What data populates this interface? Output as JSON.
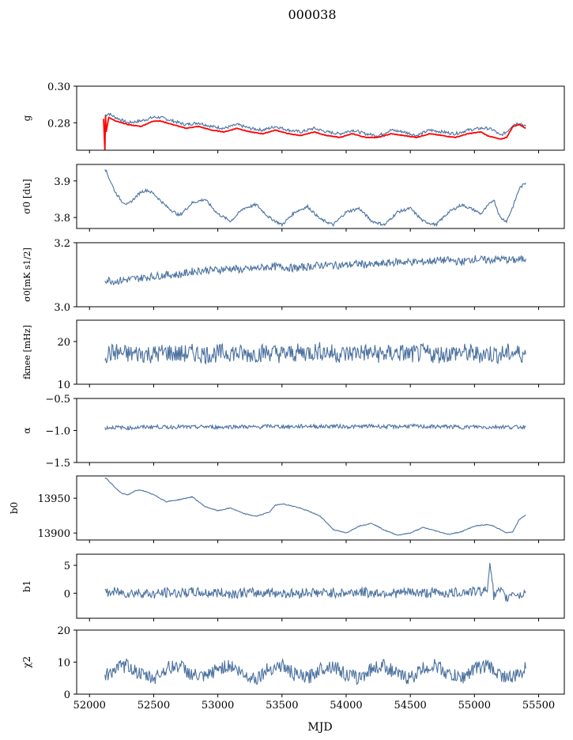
{
  "figure_title": "000038",
  "xaxis": {
    "label": "MJD",
    "range": [
      51900,
      55700
    ],
    "ticks": [
      52000,
      52500,
      53000,
      53500,
      54000,
      54500,
      55000,
      55500
    ]
  },
  "chart_data": [
    {
      "type": "line",
      "ylabel": "g",
      "ylim": [
        0.265,
        0.3
      ],
      "yticks": [
        0.28,
        0.3
      ],
      "ytick_labels": [
        "0.28",
        "0.30"
      ],
      "series": [
        {
          "color": "#4c72a0",
          "x": [
            52120,
            52150,
            52200,
            52300,
            52400,
            52500,
            52550,
            52650,
            52750,
            52850,
            52950,
            53050,
            53150,
            53250,
            53350,
            53450,
            53550,
            53650,
            53750,
            53850,
            53950,
            54050,
            54150,
            54250,
            54350,
            54450,
            54550,
            54650,
            54750,
            54850,
            54950,
            55050,
            55100,
            55150,
            55200,
            55250,
            55300,
            55350,
            55400
          ],
          "y": [
            0.284,
            0.285,
            0.283,
            0.28,
            0.281,
            0.283,
            0.283,
            0.281,
            0.279,
            0.28,
            0.278,
            0.277,
            0.279,
            0.277,
            0.276,
            0.278,
            0.276,
            0.275,
            0.277,
            0.275,
            0.274,
            0.276,
            0.274,
            0.273,
            0.276,
            0.275,
            0.273,
            0.276,
            0.275,
            0.274,
            0.276,
            0.277,
            0.277,
            0.276,
            0.273,
            0.275,
            0.279,
            0.28,
            0.278
          ]
        },
        {
          "color": "#ff0000",
          "x": [
            52110,
            52120,
            52125,
            52130,
            52150,
            52200,
            52300,
            52400,
            52500,
            52550,
            52650,
            52750,
            52850,
            52950,
            53050,
            53150,
            53250,
            53350,
            53450,
            53550,
            53650,
            53750,
            53850,
            53950,
            54050,
            54150,
            54250,
            54350,
            54450,
            54550,
            54650,
            54750,
            54850,
            54950,
            55050,
            55100,
            55150,
            55200,
            55250,
            55300,
            55350,
            55400
          ],
          "y": [
            0.282,
            0.265,
            0.284,
            0.275,
            0.283,
            0.281,
            0.279,
            0.278,
            0.281,
            0.281,
            0.279,
            0.277,
            0.278,
            0.276,
            0.275,
            0.277,
            0.275,
            0.274,
            0.276,
            0.274,
            0.273,
            0.275,
            0.273,
            0.272,
            0.274,
            0.272,
            0.272,
            0.274,
            0.273,
            0.272,
            0.274,
            0.273,
            0.272,
            0.274,
            0.275,
            0.273,
            0.272,
            0.271,
            0.272,
            0.278,
            0.279,
            0.277
          ]
        }
      ]
    },
    {
      "type": "line",
      "ylabel": "σ0 [du]",
      "ylim": [
        3.77,
        3.945
      ],
      "yticks": [
        3.8,
        3.9
      ],
      "ytick_labels": [
        "3.8",
        "3.9"
      ],
      "series": [
        {
          "color": "#4c72a0",
          "x": [
            52120,
            52150,
            52200,
            52250,
            52300,
            52400,
            52450,
            52500,
            52600,
            52700,
            52800,
            52900,
            53000,
            53100,
            53200,
            53300,
            53400,
            53500,
            53600,
            53700,
            53800,
            53900,
            54000,
            54100,
            54200,
            54300,
            54400,
            54500,
            54600,
            54700,
            54800,
            54900,
            55000,
            55050,
            55100,
            55150,
            55200,
            55250,
            55300,
            55350,
            55400
          ],
          "y": [
            3.935,
            3.91,
            3.87,
            3.845,
            3.835,
            3.87,
            3.875,
            3.865,
            3.83,
            3.805,
            3.84,
            3.85,
            3.81,
            3.79,
            3.825,
            3.835,
            3.8,
            3.78,
            3.815,
            3.83,
            3.795,
            3.78,
            3.815,
            3.825,
            3.79,
            3.78,
            3.815,
            3.825,
            3.79,
            3.78,
            3.815,
            3.835,
            3.82,
            3.81,
            3.83,
            3.85,
            3.8,
            3.79,
            3.83,
            3.88,
            3.895
          ]
        }
      ]
    },
    {
      "type": "line",
      "ylabel": "σ0[mK s1/2]",
      "ylim": [
        3.0,
        3.2
      ],
      "yticks": [
        3.0,
        3.2
      ],
      "ytick_labels": [
        "3.0",
        "3.2"
      ],
      "series": [
        {
          "color": "#4c72a0",
          "x": [
            52120,
            52200,
            52300,
            52400,
            52500,
            52600,
            52700,
            52800,
            52900,
            53000,
            53100,
            53200,
            53300,
            53400,
            53500,
            53600,
            53700,
            53800,
            53900,
            54000,
            54100,
            54200,
            54300,
            54400,
            54500,
            54600,
            54700,
            54800,
            54900,
            55000,
            55100,
            55200,
            55300,
            55400
          ],
          "y": [
            3.085,
            3.08,
            3.085,
            3.09,
            3.095,
            3.1,
            3.1,
            3.11,
            3.115,
            3.115,
            3.12,
            3.115,
            3.12,
            3.125,
            3.125,
            3.12,
            3.125,
            3.13,
            3.13,
            3.13,
            3.135,
            3.13,
            3.135,
            3.14,
            3.14,
            3.14,
            3.145,
            3.145,
            3.14,
            3.15,
            3.145,
            3.15,
            3.145,
            3.15
          ]
        }
      ]
    },
    {
      "type": "line",
      "ylabel": "fknee [mHz]",
      "ylim": [
        10,
        25
      ],
      "yticks": [
        10,
        20
      ],
      "ytick_labels": [
        "10",
        "20"
      ],
      "series": [
        {
          "color": "#4c72a0",
          "x": [
            52120,
            52200,
            52300,
            52400,
            52500,
            52600,
            52700,
            52800,
            52900,
            53000,
            53100,
            53200,
            53300,
            53400,
            53500,
            53600,
            53700,
            53800,
            53900,
            54000,
            54100,
            54200,
            54300,
            54400,
            54500,
            54600,
            54700,
            54800,
            54900,
            55000,
            55100,
            55200,
            55300,
            55400
          ],
          "y": [
            17,
            17.5,
            17,
            17.2,
            17,
            17.5,
            17,
            17.3,
            17,
            17.2,
            17.5,
            17,
            17.2,
            17.5,
            17,
            17.3,
            17.5,
            17.8,
            17.2,
            17,
            17.6,
            17.2,
            17,
            17.4,
            17,
            17.3,
            17,
            17.2,
            17.5,
            17,
            17.2,
            17,
            17.4,
            17
          ]
        }
      ]
    },
    {
      "type": "line",
      "ylabel": "α",
      "ylim": [
        -1.5,
        -0.5
      ],
      "yticks": [
        -1.5,
        -1.0,
        -0.5
      ],
      "ytick_labels": [
        "−1.5",
        "−1.0",
        "−0.5"
      ],
      "series": [
        {
          "color": "#4c72a0",
          "x": [
            52120,
            52200,
            52300,
            52400,
            52500,
            52600,
            52700,
            52800,
            52900,
            53000,
            53100,
            53200,
            53300,
            53400,
            53500,
            53600,
            53700,
            53800,
            53900,
            54000,
            54100,
            54200,
            54300,
            54400,
            54500,
            54600,
            54700,
            54800,
            54900,
            55000,
            55100,
            55200,
            55300,
            55400
          ],
          "y": [
            -0.96,
            -0.95,
            -0.96,
            -0.95,
            -0.94,
            -0.95,
            -0.94,
            -0.95,
            -0.94,
            -0.95,
            -0.94,
            -0.94,
            -0.95,
            -0.93,
            -0.94,
            -0.94,
            -0.93,
            -0.94,
            -0.93,
            -0.94,
            -0.94,
            -0.93,
            -0.94,
            -0.94,
            -0.93,
            -0.94,
            -0.94,
            -0.94,
            -0.95,
            -0.94,
            -0.95,
            -0.94,
            -0.95,
            -0.94
          ]
        }
      ]
    },
    {
      "type": "line",
      "ylabel": "b0",
      "ylim": [
        13890,
        13982
      ],
      "yticks": [
        13900,
        13950
      ],
      "ytick_labels": [
        "13900",
        "13950"
      ],
      "series": [
        {
          "color": "#4c72a0",
          "x": [
            52120,
            52150,
            52200,
            52250,
            52300,
            52350,
            52400,
            52500,
            52600,
            52700,
            52800,
            52900,
            53000,
            53100,
            53200,
            53300,
            53400,
            53450,
            53500,
            53600,
            53700,
            53800,
            53900,
            54000,
            54100,
            54200,
            54300,
            54400,
            54500,
            54600,
            54700,
            54800,
            54900,
            55000,
            55100,
            55150,
            55200,
            55250,
            55300,
            55350,
            55400
          ],
          "y": [
            13980,
            13975,
            13965,
            13957,
            13955,
            13960,
            13962,
            13955,
            13945,
            13948,
            13952,
            13938,
            13932,
            13936,
            13928,
            13924,
            13930,
            13940,
            13942,
            13938,
            13932,
            13924,
            13905,
            13900,
            13910,
            13914,
            13904,
            13897,
            13900,
            13908,
            13903,
            13898,
            13902,
            13910,
            13912,
            13910,
            13905,
            13900,
            13902,
            13920,
            13926
          ]
        }
      ]
    },
    {
      "type": "line",
      "ylabel": "b1",
      "ylim": [
        -4.5,
        7
      ],
      "yticks": [
        0,
        5
      ],
      "ytick_labels": [
        "0",
        "5"
      ],
      "series": [
        {
          "color": "#4c72a0",
          "x": [
            52120,
            52200,
            52300,
            52400,
            52500,
            52600,
            52700,
            52800,
            52900,
            53000,
            53100,
            53200,
            53300,
            53400,
            53500,
            53600,
            53700,
            53800,
            53900,
            54000,
            54100,
            54200,
            54300,
            54400,
            54500,
            54600,
            54700,
            54800,
            54900,
            55000,
            55100,
            55120,
            55150,
            55200,
            55250,
            55300,
            55350,
            55400
          ],
          "y": [
            0,
            0.2,
            0,
            0.1,
            -0.2,
            0.1,
            0,
            0.2,
            0,
            0.1,
            -0.1,
            0.1,
            0,
            0.2,
            0,
            -0.1,
            0.2,
            0,
            0.1,
            0,
            0.3,
            0,
            0.1,
            0,
            0.2,
            0,
            0.1,
            0,
            0.2,
            0.3,
            0.5,
            6.2,
            -0.5,
            0.4,
            -1.0,
            0.3,
            -0.5,
            0.3
          ]
        }
      ]
    },
    {
      "type": "line",
      "ylabel": "χ2",
      "ylim": [
        0,
        20
      ],
      "yticks": [
        0,
        10,
        20
      ],
      "ytick_labels": [
        "0",
        "10",
        "20"
      ],
      "series": [
        {
          "color": "#4c72a0",
          "x": [
            52120,
            52200,
            52300,
            52400,
            52500,
            52600,
            52700,
            52800,
            52900,
            53000,
            53100,
            53200,
            53300,
            53400,
            53500,
            53600,
            53700,
            53800,
            53900,
            54000,
            54100,
            54200,
            54300,
            54400,
            54500,
            54600,
            54700,
            54800,
            54900,
            55000,
            55100,
            55200,
            55300,
            55400
          ],
          "y": [
            5.5,
            8,
            9,
            6,
            5,
            8,
            9,
            6,
            5,
            8,
            9,
            6,
            5,
            8,
            9,
            6,
            5,
            8,
            9,
            6,
            5,
            8,
            9,
            6,
            5,
            8,
            9,
            6,
            5,
            8,
            9,
            6,
            5,
            8
          ]
        }
      ]
    }
  ]
}
